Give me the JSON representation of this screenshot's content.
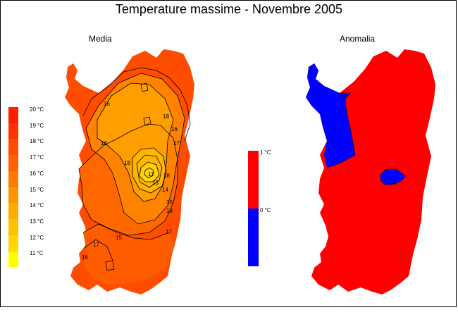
{
  "title": "Temperature massime - Novembre 2005",
  "panels": {
    "left": "Media",
    "right": "Anomalia"
  },
  "legend_left": {
    "items": [
      {
        "label": "20 °C",
        "color": "#ff1f00"
      },
      {
        "label": "19 °C",
        "color": "#ff3300"
      },
      {
        "label": "18 °C",
        "color": "#ff4a00"
      },
      {
        "label": "17 °C",
        "color": "#ff6100"
      },
      {
        "label": "16 °C",
        "color": "#ff7a00"
      },
      {
        "label": "15 °C",
        "color": "#ff9300"
      },
      {
        "label": "14 °C",
        "color": "#ffab00"
      },
      {
        "label": "13 °C",
        "color": "#ffc200"
      },
      {
        "label": "12 °C",
        "color": "#ffd700"
      },
      {
        "label": "11 °C",
        "color": "#ffee00"
      }
    ],
    "bottom_color": "#ffff00"
  },
  "legend_right": {
    "items": [
      {
        "label": "1 °C",
        "color": "#ff0000"
      },
      {
        "label": "0 °C",
        "color": "#0000ff"
      }
    ]
  },
  "contour_labels": [
    "16",
    "18",
    "16",
    "16",
    "18",
    "17",
    "18",
    "14",
    "13",
    "12",
    "16",
    "17",
    "15",
    "17",
    "16",
    "18"
  ],
  "anomaly_labels": [
    "0",
    "0"
  ],
  "colors": {
    "island_base": "#ff4400",
    "anomaly_positive": "#ff0000",
    "anomaly_negative": "#0000ff"
  }
}
